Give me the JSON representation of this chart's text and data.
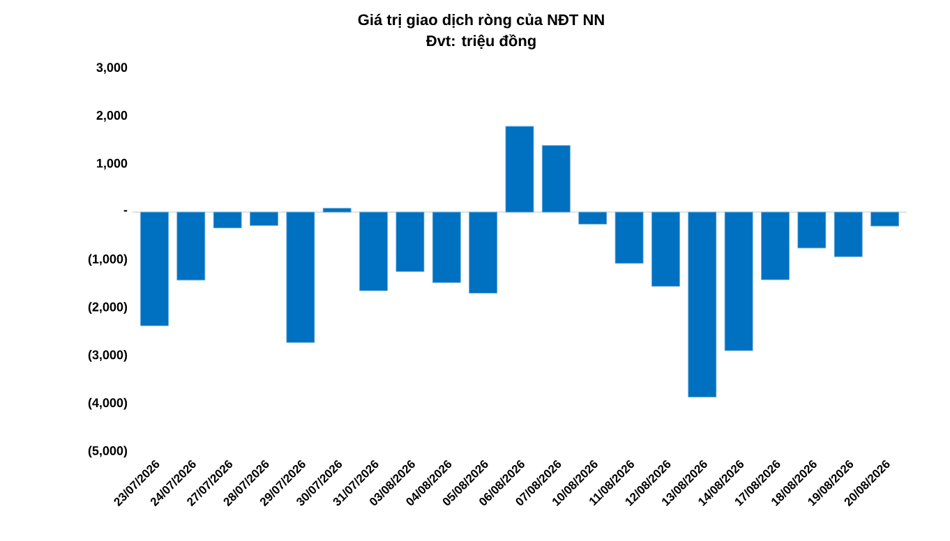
{
  "chart_data": {
    "type": "bar",
    "title": "Giá trị giao dịch ròng của NĐT NN",
    "subtitle": "Đvt: triệu đồng",
    "categories": [
      "23/07/2026",
      "24/07/2026",
      "27/07/2026",
      "28/07/2026",
      "29/07/2026",
      "30/07/2026",
      "31/07/2026",
      "03/08/2026",
      "04/08/2026",
      "05/08/2026",
      "06/08/2026",
      "07/08/2026",
      "10/08/2026",
      "11/08/2026",
      "12/08/2026",
      "13/08/2026",
      "14/08/2026",
      "17/08/2026",
      "18/08/2026",
      "19/08/2026",
      "20/08/2026"
    ],
    "values": [
      -2370,
      -1420,
      -330,
      -280,
      -2720,
      80,
      -1640,
      -1240,
      -1470,
      -1690,
      1790,
      1390,
      -250,
      -1070,
      -1550,
      -3860,
      -2890,
      -1410,
      -750,
      -930,
      -290
    ],
    "color": "#0070c0",
    "ylim": [
      -5000,
      3000
    ],
    "yticks": [
      {
        "value": 3000,
        "label": "3,000"
      },
      {
        "value": 2000,
        "label": "2,000"
      },
      {
        "value": 1000,
        "label": "1,000"
      },
      {
        "value": 0,
        "label": "-"
      },
      {
        "value": -1000,
        "label": "(1,000)"
      },
      {
        "value": -2000,
        "label": "(2,000)"
      },
      {
        "value": -3000,
        "label": "(3,000)"
      },
      {
        "value": -4000,
        "label": "(4,000)"
      },
      {
        "value": -5000,
        "label": "(5,000)"
      }
    ]
  }
}
